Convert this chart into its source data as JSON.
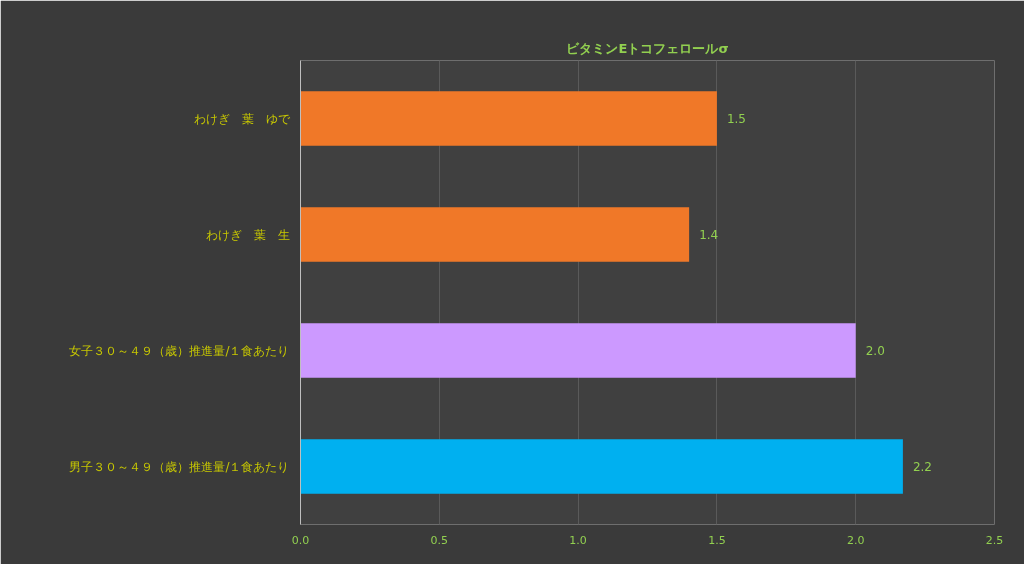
{
  "chart_data": {
    "type": "bar",
    "orientation": "horizontal",
    "title": "ビタミンEトコフェロールσ",
    "categories": [
      "わけぎ　葉　ゆで",
      "わけぎ　葉　生",
      "女子３０～４９（歳）推進量/１食あたり",
      "男子３０～４９（歳）推進量/１食あたり"
    ],
    "values": [
      1.5,
      1.4,
      2.0,
      2.17
    ],
    "value_labels": [
      "1.5",
      "1.4",
      "2.0",
      "2.2"
    ],
    "colors": [
      "#f07828",
      "#f07828",
      "#cc99ff",
      "#00b0f0"
    ],
    "xlim": [
      0,
      2.5
    ],
    "xticks": [
      "0.0",
      "0.5",
      "1.0",
      "1.5",
      "2.0",
      "2.5"
    ],
    "grid": "x"
  }
}
